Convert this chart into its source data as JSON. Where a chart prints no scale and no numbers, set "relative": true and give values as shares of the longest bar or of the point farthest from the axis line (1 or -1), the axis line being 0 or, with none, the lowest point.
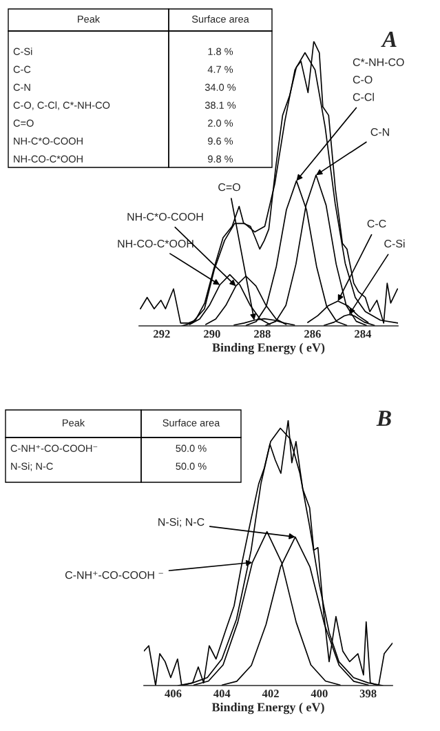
{
  "chart_data": [
    {
      "type": "line",
      "title": "A",
      "xlabel": "Binding Energy ( eV)",
      "relative": true,
      "xlim": [
        292.9,
        282.6
      ],
      "xticks": [
        292,
        290,
        288,
        286,
        284
      ],
      "series": [
        {
          "color": "#000000",
          "x": [
            292.85,
            292.58,
            292.3,
            292.03,
            291.85,
            291.53,
            291.25,
            290.93,
            290.66,
            290.29,
            289.93,
            289.56,
            289.2,
            288.92,
            288.74,
            288.47,
            288.28,
            288.1,
            287.92,
            287.74,
            287.46,
            287.19,
            286.91,
            286.64,
            286.46,
            286.18,
            285.95,
            285.73,
            285.59,
            285.36,
            285.09,
            284.81,
            284.63,
            284.36,
            284.17,
            283.9,
            283.72,
            283.44,
            283.17,
            283.03,
            282.89,
            282.62
          ],
          "values": [
            0.06,
            0.1,
            0.06,
            0.09,
            0.06,
            0.13,
            0.01,
            0.01,
            0.02,
            0.08,
            0.2,
            0.31,
            0.35,
            0.42,
            0.36,
            0.35,
            0.31,
            0.27,
            0.3,
            0.34,
            0.56,
            0.74,
            0.81,
            0.91,
            0.93,
            0.82,
            1.0,
            0.96,
            0.77,
            0.74,
            0.48,
            0.29,
            0.27,
            0.15,
            0.12,
            0.1,
            0.05,
            0.09,
            0.01,
            0.15,
            0.08,
            0.13
          ]
        },
        {
          "color": "#000000",
          "x": [
            291.2,
            290.8,
            290.3,
            289.9,
            289.5,
            289.1,
            288.7,
            288.3,
            287.9,
            287.5,
            287.1,
            286.7,
            286.3,
            285.9,
            285.5,
            285.1,
            284.7,
            284.3,
            283.9,
            283.3,
            282.6
          ],
          "values": [
            0.0,
            0.01,
            0.06,
            0.2,
            0.3,
            0.36,
            0.36,
            0.33,
            0.35,
            0.5,
            0.72,
            0.9,
            0.96,
            0.9,
            0.7,
            0.43,
            0.22,
            0.1,
            0.05,
            0.02,
            0.01
          ]
        },
        {
          "color": "#000000",
          "x": [
            290.89,
            290.49,
            290.09,
            289.69,
            289.29,
            288.89,
            288.49,
            288.09,
            287.69
          ],
          "values": [
            0.005,
            0.024,
            0.074,
            0.144,
            0.18,
            0.144,
            0.074,
            0.024,
            0.005
          ]
        },
        {
          "color": "#000000",
          "x": [
            290.25,
            289.85,
            289.45,
            289.05,
            288.65,
            288.25,
            287.85,
            287.45,
            287.05
          ],
          "values": [
            0.005,
            0.024,
            0.072,
            0.14,
            0.175,
            0.14,
            0.072,
            0.024,
            0.005
          ]
        },
        {
          "color": "#000000",
          "x": [
            289.12,
            288.72,
            288.32,
            287.92,
            287.52,
            287.12,
            286.72
          ],
          "values": [
            0.003,
            0.01,
            0.02,
            0.025,
            0.02,
            0.01,
            0.003
          ]
        },
        {
          "color": "#000000",
          "x": [
            288.64,
            288.24,
            287.84,
            287.44,
            287.04,
            286.64,
            286.24,
            285.84,
            285.44,
            285.04,
            284.64
          ],
          "values": [
            0.002,
            0.015,
            0.069,
            0.209,
            0.408,
            0.51,
            0.408,
            0.209,
            0.069,
            0.015,
            0.002
          ]
        },
        {
          "color": "#000000",
          "x": [
            287.86,
            287.46,
            287.06,
            286.66,
            286.26,
            285.86,
            285.46,
            285.06,
            284.66,
            284.26,
            283.86
          ],
          "values": [
            0.002,
            0.016,
            0.072,
            0.217,
            0.424,
            0.53,
            0.424,
            0.217,
            0.072,
            0.016,
            0.002
          ]
        },
        {
          "color": "#000000",
          "x": [
            286.19,
            285.79,
            285.39,
            284.99,
            284.59,
            284.19,
            283.79
          ],
          "values": [
            0.012,
            0.036,
            0.07,
            0.087,
            0.07,
            0.036,
            0.012
          ]
        },
        {
          "color": "#000000",
          "x": [
            285.54,
            285.14,
            284.74,
            284.54,
            284.34,
            283.94,
            283.54
          ],
          "values": [
            0.002,
            0.013,
            0.035,
            0.04,
            0.035,
            0.013,
            0.002
          ]
        }
      ],
      "annotations": [
        "Peak",
        "Surface area",
        "C-Si",
        "1.8 %",
        "C-C",
        "4.7 %",
        "C-N",
        "34.0 %",
        "C-O, C-Cl, C*-NH-CO",
        "38.1 %",
        "C=O",
        "2.0 %",
        "NH-C*O-COOH",
        "9.6 %",
        "NH-CO-C*OOH",
        "9.8 %",
        {
          "text": "NH-CO-C*OOH",
          "x": 289.69,
          "y": 0.144
        },
        {
          "text": "NH-C*O-COOH",
          "x": 289.05,
          "y": 0.14
        },
        {
          "text": "C=O",
          "x": 288.32,
          "y": 0.02
        },
        {
          "text": "C*-NH-CO\nC-O\nC-Cl",
          "x": 286.64,
          "y": 0.51
        },
        {
          "text": "C-N",
          "x": 285.86,
          "y": 0.53
        },
        {
          "text": "C-C",
          "x": 284.99,
          "y": 0.087
        },
        {
          "text": "C-Si",
          "x": 284.54,
          "y": 0.04
        }
      ]
    },
    {
      "type": "line",
      "title": "B",
      "xlabel": "Binding Energy ( eV)",
      "relative": true,
      "xlim": [
        407.2,
        397.0
      ],
      "xticks": [
        406,
        404,
        402,
        400,
        398
      ],
      "series": [
        {
          "color": "#000000",
          "x": [
            407.2,
            407.0,
            406.72,
            406.55,
            406.33,
            406.1,
            405.82,
            405.65,
            405.2,
            404.97,
            404.75,
            404.52,
            404.24,
            403.84,
            403.5,
            403.16,
            402.82,
            402.49,
            402.26,
            402.03,
            401.81,
            401.58,
            401.28,
            401.13,
            400.96,
            400.68,
            400.4,
            400.23,
            400.06,
            399.83,
            399.6,
            399.32,
            399.04,
            398.76,
            398.42,
            398.19,
            398.08,
            397.91,
            397.57,
            397.34,
            397.0
          ],
          "values": [
            0.13,
            0.15,
            0.0,
            0.12,
            0.09,
            0.03,
            0.1,
            0.0,
            0.01,
            0.07,
            0.01,
            0.15,
            0.1,
            0.21,
            0.3,
            0.47,
            0.62,
            0.76,
            0.82,
            0.91,
            0.85,
            0.8,
            1.0,
            0.84,
            0.92,
            0.74,
            0.67,
            0.51,
            0.52,
            0.28,
            0.09,
            0.26,
            0.13,
            0.09,
            0.12,
            0.04,
            0.24,
            0.01,
            0.0,
            0.12,
            0.16
          ]
        },
        {
          "color": "#000000",
          "x": [
            405.8,
            405.2,
            404.6,
            404.0,
            403.4,
            402.8,
            402.4,
            402.0,
            401.6,
            401.2,
            400.8,
            400.4,
            400.0,
            399.6,
            399.2,
            398.6,
            398.0,
            397.4
          ],
          "values": [
            0.0,
            0.01,
            0.03,
            0.1,
            0.25,
            0.51,
            0.76,
            0.92,
            0.97,
            0.93,
            0.8,
            0.6,
            0.38,
            0.2,
            0.09,
            0.03,
            0.01,
            0.0
          ]
        },
        {
          "color": "#000000",
          "x": [
            405.15,
            404.55,
            403.95,
            403.35,
            402.75,
            402.15,
            401.55,
            400.95,
            400.35,
            399.75,
            399.15
          ],
          "values": [
            0.002,
            0.017,
            0.078,
            0.238,
            0.464,
            0.58,
            0.464,
            0.238,
            0.078,
            0.017,
            0.002
          ]
        },
        {
          "color": "#000000",
          "x": [
            403.99,
            403.39,
            402.79,
            402.19,
            401.59,
            400.99,
            400.39,
            399.79,
            399.19,
            398.59,
            397.99
          ],
          "values": [
            0.002,
            0.016,
            0.076,
            0.23,
            0.448,
            0.56,
            0.448,
            0.23,
            0.076,
            0.016,
            0.002
          ]
        }
      ],
      "annotations": [
        "Peak",
        "Surface area",
        "C-NH⁺-CO-COOH⁻",
        "50.0 %",
        "N-Si; N-C",
        "50.0 %",
        {
          "text": "N-Si; N-C",
          "x": 400.99,
          "y": 0.56
        },
        {
          "text": "C-NH⁺-CO-COOH ⁻",
          "x": 402.75,
          "y": 0.464
        }
      ]
    }
  ]
}
